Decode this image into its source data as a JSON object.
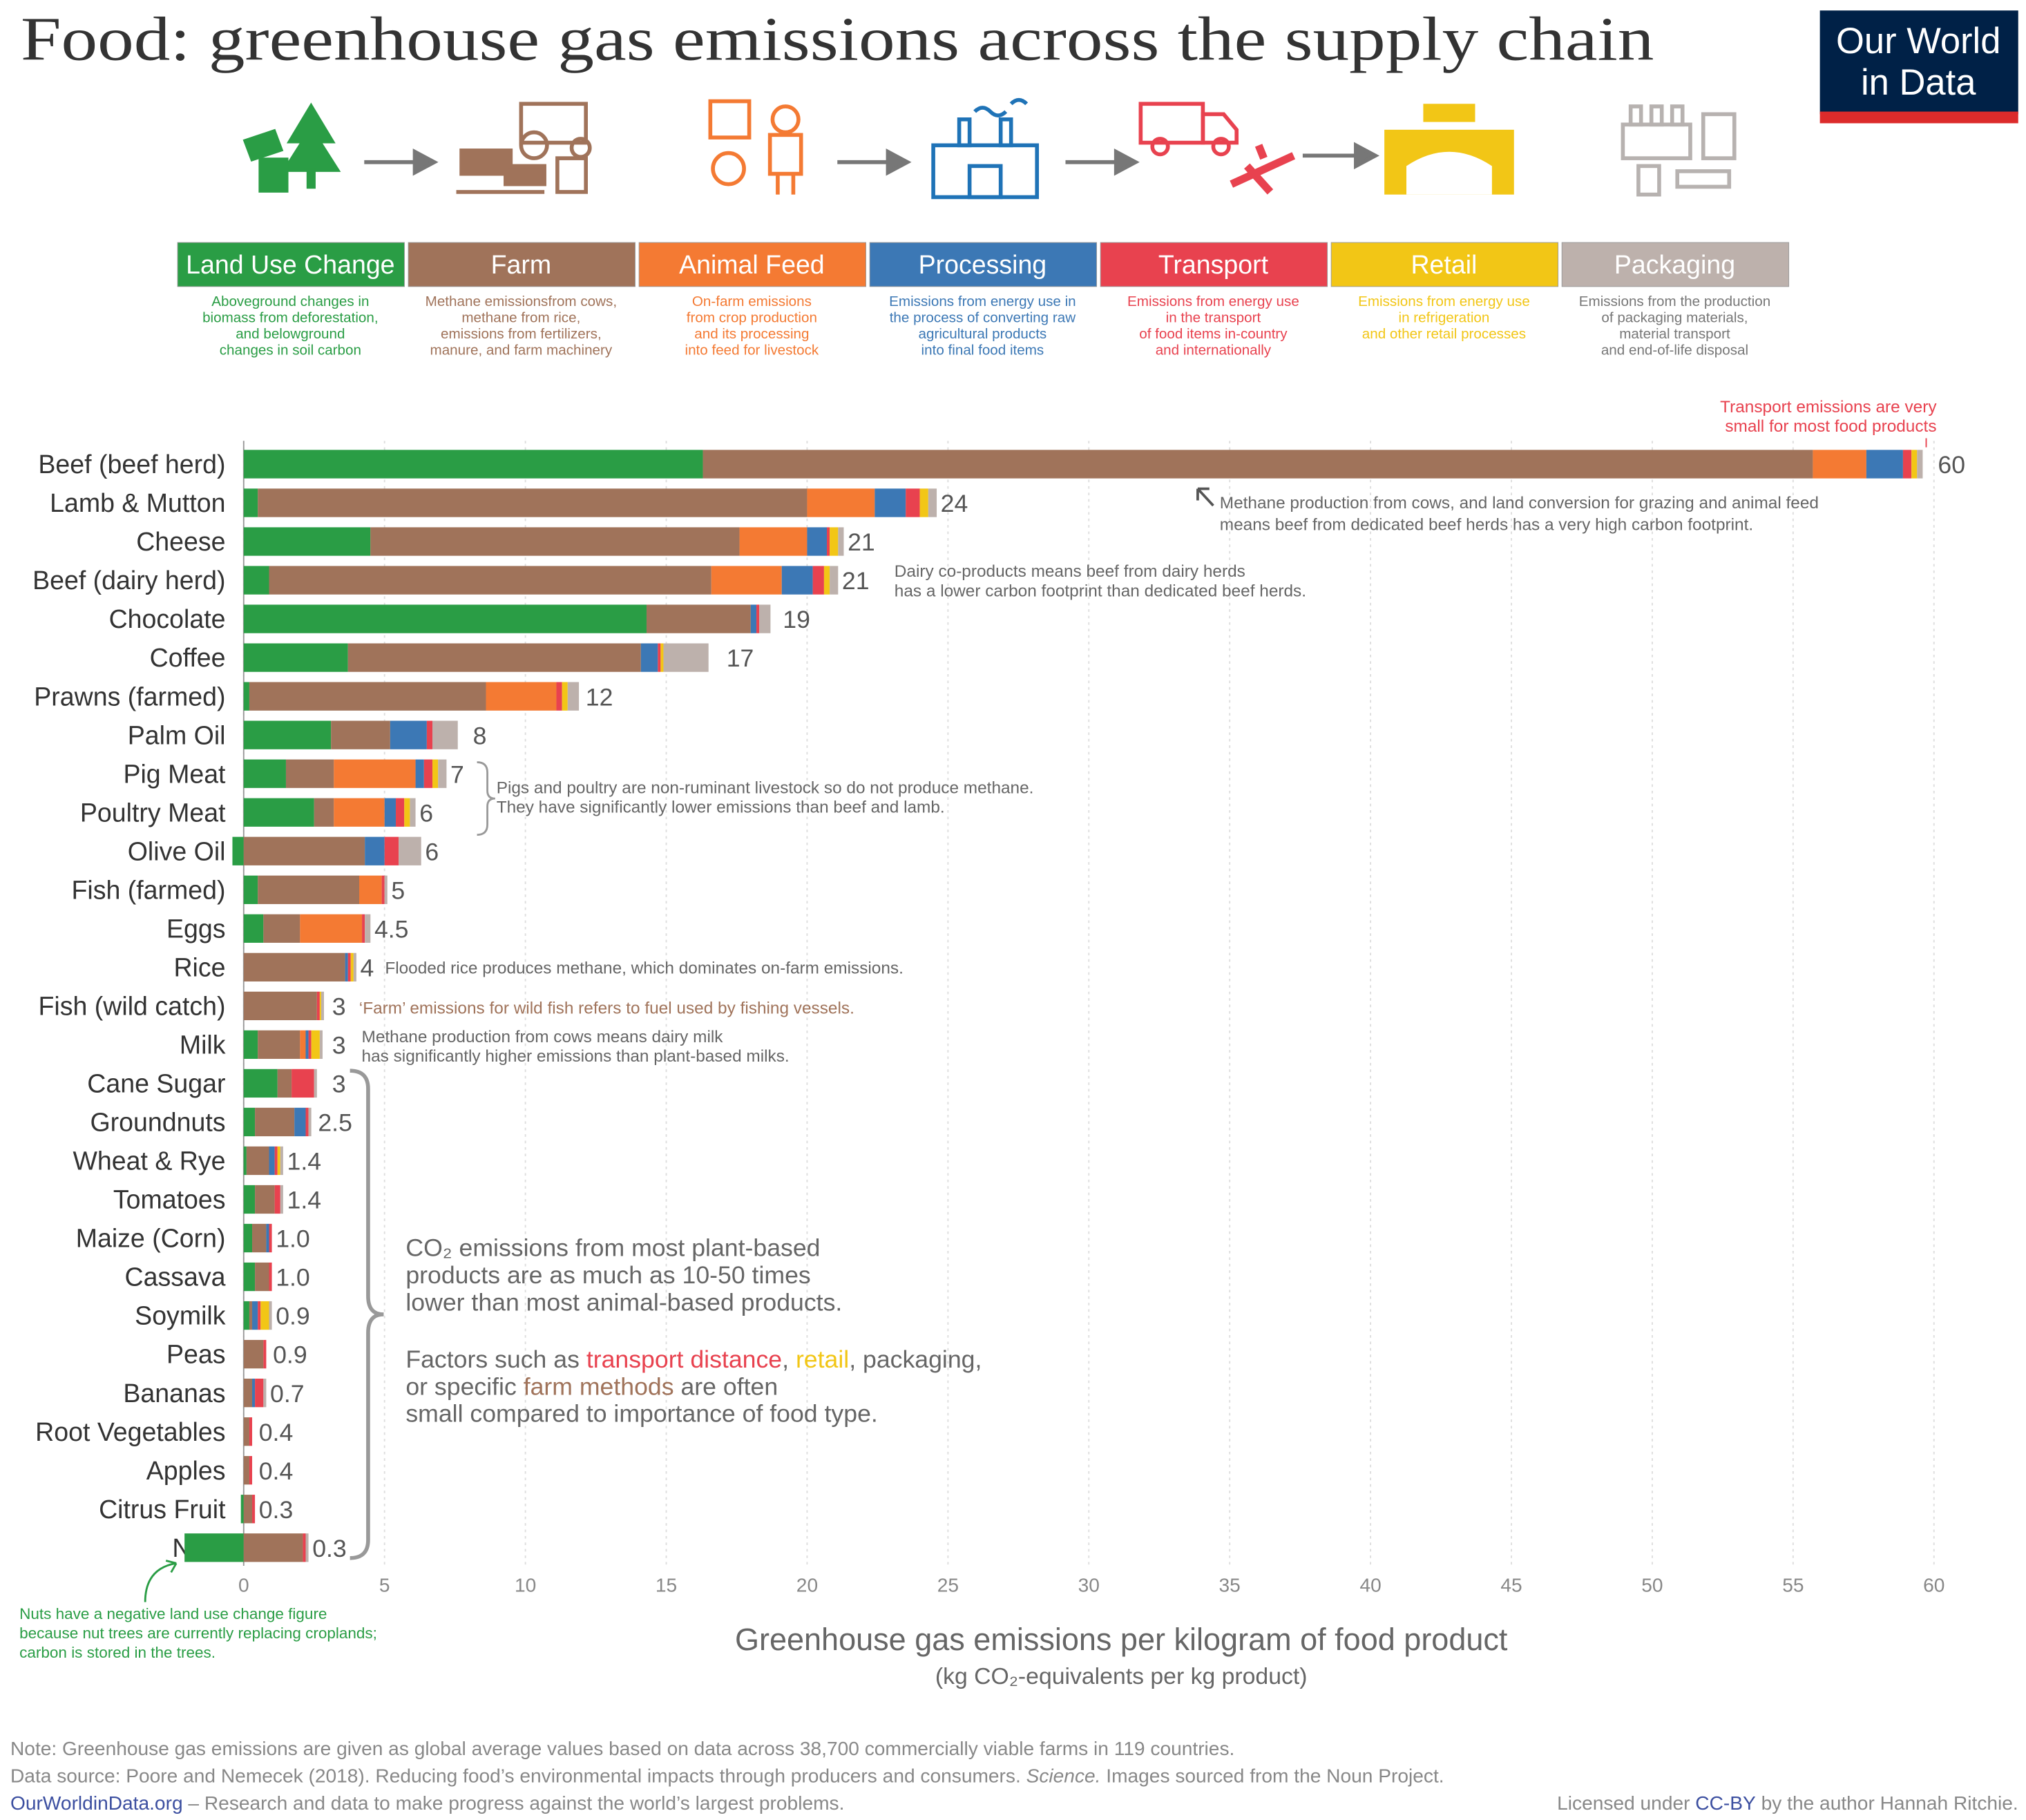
{
  "chart_data": {
    "type": "stacked-bar",
    "title": "Food: greenhouse gas emissions across the supply chain",
    "logo": [
      "Our World",
      "in Data"
    ],
    "categories": [
      "Beef (beef herd)",
      "Lamb & Mutton",
      "Cheese",
      "Beef (dairy herd)",
      "Chocolate",
      "Coffee",
      "Prawns (farmed)",
      "Palm Oil",
      "Pig Meat",
      "Poultry Meat",
      "Olive Oil",
      "Fish (farmed)",
      "Eggs",
      "Rice",
      "Fish (wild catch)",
      "Milk",
      "Cane Sugar",
      "Groundnuts",
      "Wheat & Rye",
      "Tomatoes",
      "Maize (Corn)",
      "Cassava",
      "Soymilk",
      "Peas",
      "Bananas",
      "Root Vegetables",
      "Apples",
      "Citrus Fruit",
      "Nuts"
    ],
    "series": [
      {
        "name": "Land Use Change",
        "color": "#2a9d45",
        "description": [
          "Aboveground changes in",
          "biomass from  deforestation,",
          "and belowground",
          "changes in soil carbon"
        ],
        "values": [
          16.3,
          0.5,
          4.5,
          0.9,
          14.3,
          3.7,
          0.2,
          3.1,
          1.5,
          2.5,
          -0.4,
          0.5,
          0.7,
          0,
          0,
          0.5,
          1.2,
          0.4,
          0.1,
          0.4,
          0.3,
          0.4,
          0.2,
          0,
          0,
          0,
          0,
          -0.1,
          -2.1
        ]
      },
      {
        "name": "Farm",
        "color": "#a0735a",
        "description": [
          "Methane emissionsfrom cows,",
          "methane from rice,",
          "emissions from fertilizers,",
          "manure, and farm machinery"
        ],
        "values": [
          39.4,
          19.5,
          13.1,
          15.7,
          3.7,
          10.4,
          8.4,
          2.1,
          1.7,
          0.7,
          4.3,
          3.6,
          1.3,
          3.6,
          2.6,
          1.5,
          0.5,
          1.4,
          0.8,
          0.7,
          0.5,
          0.5,
          0.1,
          0.7,
          0.3,
          0.2,
          0.2,
          0.3,
          2.1
        ]
      },
      {
        "name": "Animal Feed",
        "color": "#f47a33",
        "description": [
          "On-farm emissions",
          "from crop production",
          "and its processing",
          "into feed for livestock"
        ],
        "values": [
          1.9,
          2.4,
          2.4,
          2.5,
          0,
          0,
          2.5,
          0,
          2.9,
          1.8,
          0,
          0.8,
          2.2,
          0,
          0,
          0.2,
          0,
          0,
          0,
          0,
          0,
          0,
          0,
          0,
          0,
          0,
          0,
          0,
          0
        ]
      },
      {
        "name": "Processing",
        "color": "#3c78b5",
        "description": [
          "Emissions from energy use in",
          "the process of converting raw",
          "agricultural products",
          "into final food items"
        ],
        "values": [
          1.3,
          1.1,
          0.7,
          1.1,
          0.2,
          0.6,
          0,
          1.3,
          0.3,
          0.4,
          0.7,
          0,
          0,
          0.1,
          0,
          0.1,
          0,
          0.4,
          0.2,
          0,
          0.1,
          0,
          0.2,
          0,
          0.1,
          0,
          0,
          0,
          0
        ]
      },
      {
        "name": "Transport",
        "color": "#e8424f",
        "description": [
          "Emissions from energy use",
          "in the transport",
          "of food items in-country",
          "and internationally"
        ],
        "values": [
          0.3,
          0.5,
          0.1,
          0.4,
          0.1,
          0.1,
          0.2,
          0.2,
          0.3,
          0.3,
          0.5,
          0.1,
          0.1,
          0.1,
          0.1,
          0.1,
          0.8,
          0.1,
          0.1,
          0.2,
          0.1,
          0.1,
          0.1,
          0.1,
          0.3,
          0.1,
          0.1,
          0.1,
          0.1
        ]
      },
      {
        "name": "Retail",
        "color": "#f2c616",
        "description": [
          "Emissions from energy use",
          "in refrigeration",
          "and other retail processes"
        ],
        "values": [
          0.2,
          0.3,
          0.3,
          0.2,
          0,
          0.1,
          0.2,
          0,
          0.2,
          0.2,
          0,
          0,
          0,
          0.1,
          0.05,
          0.3,
          0,
          0,
          0.1,
          0,
          0,
          0,
          0.3,
          0,
          0,
          0,
          0,
          0,
          0
        ]
      },
      {
        "name": "Packaging",
        "color": "#bdb1ac",
        "description": [
          "Emissions from the production",
          "of packaging materials,",
          "material transport",
          "and end-of-life disposal"
        ],
        "values": [
          0.2,
          0.3,
          0.2,
          0.3,
          0.4,
          1.6,
          0.4,
          0.9,
          0.3,
          0.2,
          0.8,
          0.1,
          0.2,
          0.1,
          0.1,
          0.1,
          0.1,
          0.1,
          0.1,
          0.1,
          0,
          0,
          0.1,
          0,
          0.1,
          0,
          0,
          0,
          0.1
        ]
      }
    ],
    "totals": {
      "values": [
        60,
        24,
        21,
        21,
        19,
        17,
        12,
        8,
        7,
        6,
        6,
        5,
        4.5,
        4,
        3,
        3,
        3,
        2.5,
        1.4,
        1.4,
        1.0,
        1.0,
        0.9,
        0.9,
        0.7,
        0.4,
        0.4,
        0.3,
        0.3
      ],
      "value_labels": [
        "60",
        "24",
        "21",
        "21",
        "19",
        "17",
        "12",
        "8",
        "7",
        "6",
        "6",
        "5",
        "4.5",
        "4",
        "3",
        "3",
        "3",
        "2.5",
        "1.4",
        "1.4",
        "1.0",
        "1.0",
        "0.9",
        "0.9",
        "0.7",
        "0.4",
        "0.4",
        "0.3",
        "0.3"
      ]
    },
    "xlim": [
      0,
      60
    ],
    "xticks": [
      0,
      5,
      10,
      15,
      20,
      25,
      30,
      35,
      40,
      45,
      50,
      55,
      60
    ],
    "grid": true,
    "xlabel": "Greenhouse gas emissions per kilogram of food product",
    "xlabel_sub": "(kg CO₂-equivalents per kg product)",
    "annotations": {
      "transport": [
        "Transport emissions are very",
        "small for most food products"
      ],
      "beef": [
        "Methane production from cows, and land conversion for grazing and animal feed",
        "means beef from dedicated beef herds has a very high carbon footprint."
      ],
      "dairy": [
        "Dairy co-products means beef from dairy herds",
        "has a lower carbon footprint than dedicated beef herds."
      ],
      "pigs": [
        "Pigs and poultry are non-ruminant livestock so do not produce methane.",
        "They have significantly lower emissions than beef and lamb."
      ],
      "rice": "Flooded rice produces methane, which dominates on-farm emissions.",
      "fish": "‘Farm’ emissions for wild fish refers to fuel used by fishing vessels.",
      "milk": [
        "Methane production from cows means dairy milk",
        "has significantly higher emissions than plant-based milks."
      ],
      "plants": [
        "CO₂ emissions from most plant-based",
        "products are as much as 10-50 times",
        "lower than most animal-based products."
      ],
      "factors": [
        [
          "Factors such as ",
          "transport distance",
          ", ",
          "retail",
          ", packaging,"
        ],
        [
          "or specific ",
          "farm methods",
          " are often"
        ],
        [
          "small compared to importance of food type."
        ]
      ],
      "nuts": [
        "Nuts have a negative land use change figure",
        "because nut trees are currently replacing croplands;",
        "carbon is stored in the trees."
      ]
    },
    "footer": {
      "note": "Note: Greenhouse gas emissions are given as global average values based on data across 38,700 commercially viable farms in 119 countries.",
      "source": [
        "Data source: Poore and Nemecek (2018). Reducing food’s environmental impacts through producers and consumers. ",
        "Science.",
        " Images sourced from the Noun Project."
      ],
      "site": [
        "OurWorldinData.org",
        " – Research and data to make progress against the world’s largest problems."
      ],
      "license": [
        "Licensed under ",
        "CC-BY",
        " by the author Hannah Ritchie."
      ]
    }
  }
}
